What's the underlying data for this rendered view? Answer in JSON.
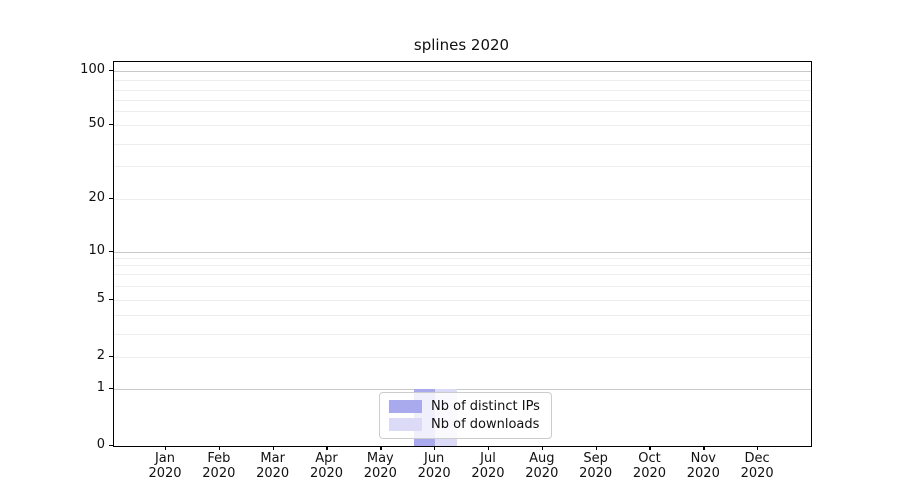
{
  "chart_data": {
    "type": "bar",
    "title": "splines 2020",
    "categories": [
      "Jan",
      "Feb",
      "Mar",
      "Apr",
      "May",
      "Jun",
      "Jul",
      "Aug",
      "Sep",
      "Oct",
      "Nov",
      "Dec"
    ],
    "category_year": "2020",
    "series": [
      {
        "name": "Nb of distinct IPs",
        "color": "#a9a9ee",
        "values": [
          0,
          0,
          0,
          0,
          0,
          1,
          0,
          0,
          0,
          0,
          0,
          0
        ]
      },
      {
        "name": "Nb of downloads",
        "color": "#dbdbf7",
        "values": [
          0,
          0,
          0,
          0,
          0,
          1,
          0,
          0,
          0,
          0,
          0,
          0
        ]
      }
    ],
    "yaxis": {
      "scale": "symlog",
      "range": [
        0,
        100
      ],
      "tick_labels": [
        0,
        1,
        2,
        5,
        10,
        20,
        50,
        100
      ],
      "major_gridline_values": [
        1,
        10,
        100
      ],
      "minor_gridline_values": [
        2,
        3,
        4,
        5,
        6,
        7,
        8,
        9,
        20,
        30,
        40,
        50,
        60,
        70,
        80,
        90
      ]
    },
    "xaxis": {
      "tick_count": 12
    },
    "legend": {
      "position": "lower center",
      "labels": [
        "Nb of distinct IPs",
        "Nb of downloads"
      ]
    },
    "grid": true
  },
  "colors": {
    "major_grid": "#c8c8c8",
    "minor_grid": "#ededed",
    "spine": "#000000",
    "legend_border": "#cccccc",
    "background": "#ffffff"
  }
}
